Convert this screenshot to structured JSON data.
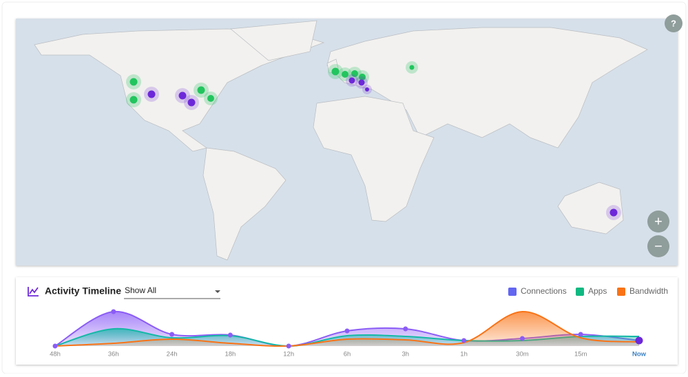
{
  "help_button": "?",
  "zoom": {
    "in": "+",
    "out": "−"
  },
  "timeline": {
    "title": "Activity Timeline",
    "filter": "Show All"
  },
  "chart_data": {
    "type": "area",
    "categories": [
      "48h",
      "36h",
      "24h",
      "18h",
      "12h",
      "6h",
      "3h",
      "1h",
      "30m",
      "15m",
      "Now"
    ],
    "series": [
      {
        "name": "Connections",
        "color": "#8b5cf6",
        "legend_color": "#6366f1",
        "values": [
          0,
          50,
          17,
          16,
          0,
          22,
          25,
          8,
          11,
          17,
          8
        ]
      },
      {
        "name": "Apps",
        "color": "#14b8a6",
        "legend_color": "#10b981",
        "values": [
          0,
          25,
          12,
          15,
          0,
          15,
          14,
          8,
          8,
          14,
          14
        ]
      },
      {
        "name": "Bandwidth",
        "color": "#f97316",
        "legend_color": "#f97316",
        "values": [
          0,
          4,
          10,
          4,
          0,
          10,
          9,
          5,
          50,
          12,
          6
        ]
      }
    ]
  }
}
